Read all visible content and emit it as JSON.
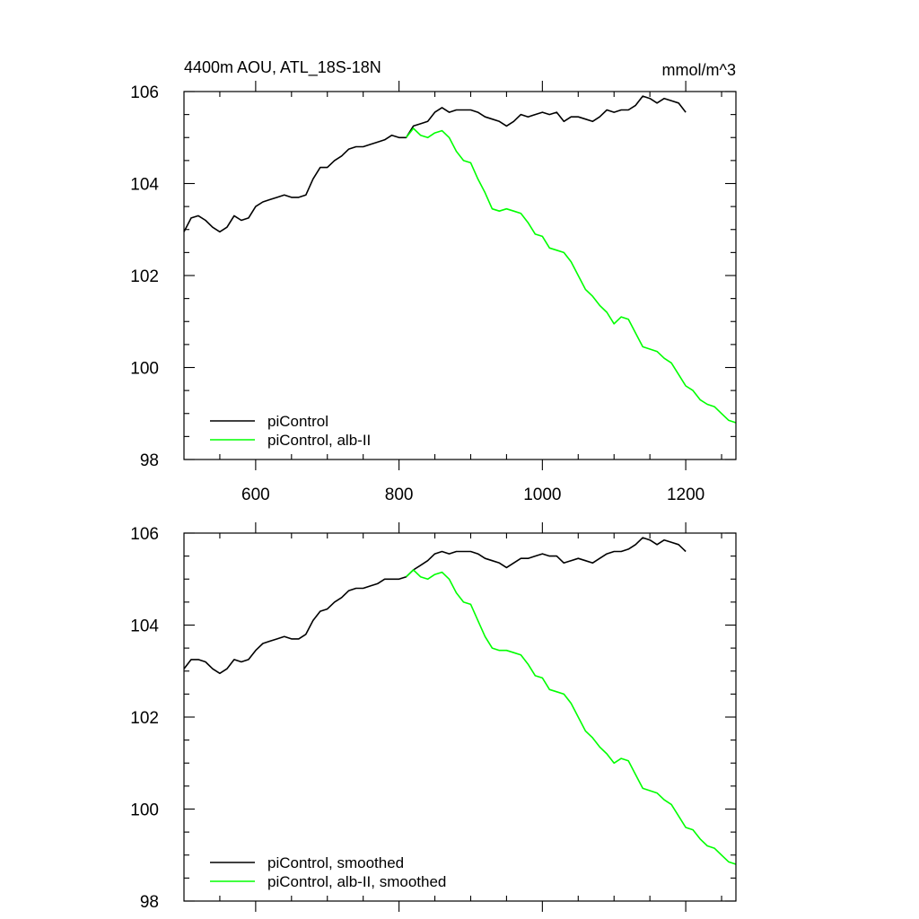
{
  "chart_data": [
    {
      "type": "line",
      "panel": "top",
      "title": "4400m AOU, ATL_18S-18N",
      "units": "mmol/m^3",
      "xlim": [
        500,
        1270
      ],
      "ylim": [
        98,
        106
      ],
      "xticks": [
        600,
        800,
        1000,
        1200
      ],
      "xtick_labels": [
        "600",
        "800",
        "1000",
        "1200"
      ],
      "show_xtick_labels": true,
      "yticks": [
        98,
        100,
        102,
        104,
        106
      ],
      "ytick_labels": [
        "98",
        "100",
        "102",
        "104",
        "106"
      ],
      "legend_position": "bottom-left",
      "series": [
        {
          "name": "piControl",
          "color": "#000000",
          "x": [
            500,
            510,
            520,
            530,
            540,
            550,
            560,
            570,
            580,
            590,
            600,
            610,
            620,
            630,
            640,
            650,
            660,
            670,
            680,
            690,
            700,
            710,
            720,
            730,
            740,
            750,
            760,
            770,
            780,
            790,
            800,
            810,
            820,
            830,
            840,
            850,
            860,
            870,
            880,
            890,
            900,
            910,
            920,
            930,
            940,
            950,
            960,
            970,
            980,
            990,
            1000,
            1010,
            1020,
            1030,
            1040,
            1050,
            1060,
            1070,
            1080,
            1090,
            1100,
            1110,
            1120,
            1130,
            1140,
            1150,
            1160,
            1170,
            1180,
            1190,
            1200
          ],
          "values": [
            102.95,
            103.25,
            103.3,
            103.2,
            103.05,
            102.95,
            103.05,
            103.3,
            103.2,
            103.25,
            103.5,
            103.6,
            103.65,
            103.7,
            103.75,
            103.7,
            103.7,
            103.75,
            104.1,
            104.35,
            104.35,
            104.5,
            104.6,
            104.75,
            104.8,
            104.8,
            104.85,
            104.9,
            104.95,
            105.05,
            105.0,
            105.0,
            105.25,
            105.3,
            105.35,
            105.55,
            105.65,
            105.55,
            105.6,
            105.6,
            105.6,
            105.55,
            105.45,
            105.4,
            105.35,
            105.25,
            105.35,
            105.5,
            105.45,
            105.5,
            105.55,
            105.5,
            105.55,
            105.35,
            105.45,
            105.45,
            105.4,
            105.35,
            105.45,
            105.6,
            105.55,
            105.6,
            105.6,
            105.7,
            105.9,
            105.85,
            105.75,
            105.85,
            105.8,
            105.75,
            105.55
          ]
        },
        {
          "name": "piControl, alb-II",
          "color": "#00ff00",
          "x": [
            810,
            820,
            830,
            840,
            850,
            860,
            870,
            880,
            890,
            900,
            910,
            920,
            930,
            940,
            950,
            960,
            970,
            980,
            990,
            1000,
            1010,
            1020,
            1030,
            1040,
            1050,
            1060,
            1070,
            1080,
            1090,
            1100,
            1110,
            1120,
            1130,
            1140,
            1150,
            1160,
            1170,
            1180,
            1190,
            1200,
            1210,
            1220,
            1230,
            1240,
            1250,
            1260,
            1270
          ],
          "values": [
            105.0,
            105.2,
            105.05,
            105.0,
            105.1,
            105.15,
            105.0,
            104.7,
            104.5,
            104.45,
            104.1,
            103.8,
            103.45,
            103.4,
            103.45,
            103.4,
            103.35,
            103.15,
            102.9,
            102.85,
            102.6,
            102.55,
            102.5,
            102.3,
            102.0,
            101.7,
            101.55,
            101.35,
            101.2,
            100.95,
            101.1,
            101.05,
            100.75,
            100.45,
            100.4,
            100.35,
            100.2,
            100.1,
            99.85,
            99.6,
            99.5,
            99.3,
            99.2,
            99.15,
            99.0,
            98.85,
            98.8
          ]
        }
      ]
    },
    {
      "type": "line",
      "panel": "bottom",
      "xlim": [
        500,
        1270
      ],
      "ylim": [
        98,
        106
      ],
      "xticks": [
        600,
        800,
        1000,
        1200
      ],
      "show_xtick_labels": false,
      "yticks": [
        98,
        100,
        102,
        104,
        106
      ],
      "ytick_labels": [
        "98",
        "100",
        "102",
        "104",
        "106"
      ],
      "legend_position": "bottom-left",
      "series": [
        {
          "name": "piControl, smoothed",
          "color": "#000000",
          "x": [
            500,
            510,
            520,
            530,
            540,
            550,
            560,
            570,
            580,
            590,
            600,
            610,
            620,
            630,
            640,
            650,
            660,
            670,
            680,
            690,
            700,
            710,
            720,
            730,
            740,
            750,
            760,
            770,
            780,
            790,
            800,
            810,
            820,
            830,
            840,
            850,
            860,
            870,
            880,
            890,
            900,
            910,
            920,
            930,
            940,
            950,
            960,
            970,
            980,
            990,
            1000,
            1010,
            1020,
            1030,
            1040,
            1050,
            1060,
            1070,
            1080,
            1090,
            1100,
            1110,
            1120,
            1130,
            1140,
            1150,
            1160,
            1170,
            1180,
            1190,
            1200
          ],
          "values": [
            103.05,
            103.25,
            103.25,
            103.2,
            103.05,
            102.95,
            103.05,
            103.25,
            103.2,
            103.25,
            103.45,
            103.6,
            103.65,
            103.7,
            103.75,
            103.7,
            103.7,
            103.8,
            104.1,
            104.3,
            104.35,
            104.5,
            104.6,
            104.75,
            104.8,
            104.8,
            104.85,
            104.9,
            105.0,
            105.0,
            105.0,
            105.05,
            105.2,
            105.3,
            105.4,
            105.55,
            105.6,
            105.55,
            105.6,
            105.6,
            105.6,
            105.55,
            105.45,
            105.4,
            105.35,
            105.25,
            105.35,
            105.45,
            105.45,
            105.5,
            105.55,
            105.5,
            105.5,
            105.35,
            105.4,
            105.45,
            105.4,
            105.35,
            105.45,
            105.55,
            105.6,
            105.6,
            105.65,
            105.75,
            105.9,
            105.85,
            105.75,
            105.85,
            105.8,
            105.75,
            105.6
          ]
        },
        {
          "name": "piControl, alb-II, smoothed",
          "color": "#00ff00",
          "x": [
            810,
            820,
            830,
            840,
            850,
            860,
            870,
            880,
            890,
            900,
            910,
            920,
            930,
            940,
            950,
            960,
            970,
            980,
            990,
            1000,
            1010,
            1020,
            1030,
            1040,
            1050,
            1060,
            1070,
            1080,
            1090,
            1100,
            1110,
            1120,
            1130,
            1140,
            1150,
            1160,
            1170,
            1180,
            1190,
            1200,
            1210,
            1220,
            1230,
            1240,
            1250,
            1260,
            1270
          ],
          "values": [
            105.05,
            105.2,
            105.05,
            105.0,
            105.1,
            105.15,
            105.0,
            104.7,
            104.5,
            104.45,
            104.1,
            103.75,
            103.5,
            103.45,
            103.45,
            103.4,
            103.35,
            103.15,
            102.9,
            102.85,
            102.6,
            102.55,
            102.5,
            102.3,
            102.0,
            101.7,
            101.55,
            101.35,
            101.2,
            101.0,
            101.1,
            101.05,
            100.75,
            100.45,
            100.4,
            100.35,
            100.2,
            100.1,
            99.85,
            99.6,
            99.55,
            99.35,
            99.2,
            99.15,
            99.0,
            98.85,
            98.8
          ]
        }
      ]
    }
  ]
}
